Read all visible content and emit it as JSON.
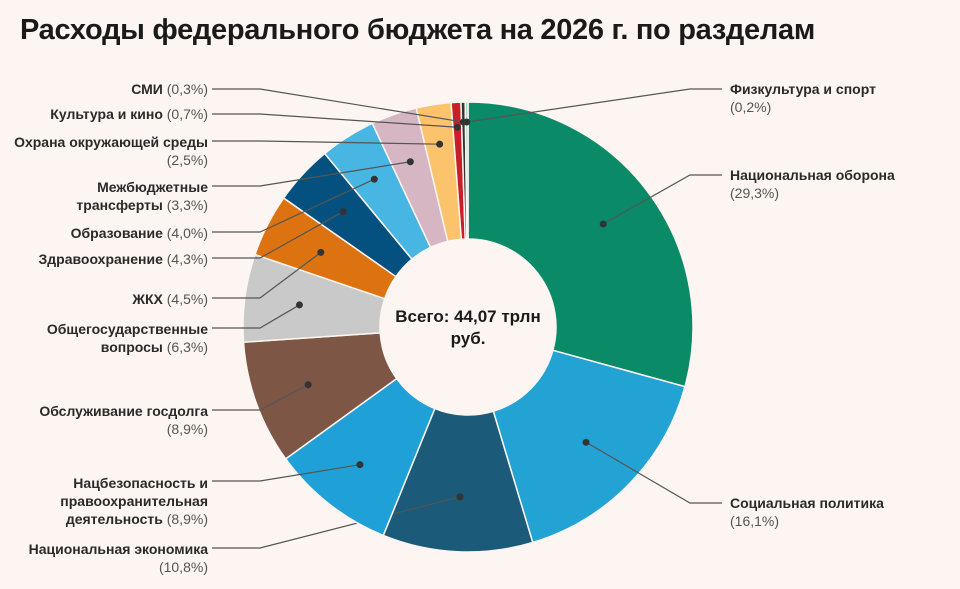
{
  "chart_data": {
    "type": "pie",
    "variant": "donut",
    "title": "Расходы федерального бюджета на 2026 г. по разделам",
    "center_label": "Всего: 44,07 трлн руб.",
    "slices": [
      {
        "name": "Национальная оборона",
        "pct_label": "(29,3%)",
        "value": 29.3,
        "color": "#0a8a67"
      },
      {
        "name": "Социальная политика",
        "pct_label": "(16,1%)",
        "value": 16.1,
        "color": "#22a3d4"
      },
      {
        "name": "Национальная экономика",
        "pct_label": "(10,8%)",
        "value": 10.8,
        "color": "#1b5a78"
      },
      {
        "name": "Нацбезопасность и правоохранительная деятельность",
        "pct_label": "(8,9%)",
        "value": 8.9,
        "color": "#1fa0d6"
      },
      {
        "name": "Обслуживание госдолга",
        "pct_label": "(8,9%)",
        "value": 8.9,
        "color": "#7e5646"
      },
      {
        "name": "Общегосударственные вопросы",
        "pct_label": "(6,3%)",
        "value": 6.3,
        "color": "#c9c9c9"
      },
      {
        "name": "ЖКХ",
        "pct_label": "(4,5%)",
        "value": 4.5,
        "color": "#dc7310"
      },
      {
        "name": "Здравоохранение",
        "pct_label": "(4,3%)",
        "value": 4.3,
        "color": "#04517f"
      },
      {
        "name": "Образование",
        "pct_label": "(4,0%)",
        "value": 4.0,
        "color": "#47b6e2"
      },
      {
        "name": "Межбюджетные трансферты",
        "pct_label": "(3,3%)",
        "value": 3.3,
        "color": "#d6b6c3"
      },
      {
        "name": "Охрана окружающей среды",
        "pct_label": "(2,5%)",
        "value": 2.5,
        "color": "#fbc36c"
      },
      {
        "name": "Культура и кино",
        "pct_label": "(0,7%)",
        "value": 0.7,
        "color": "#c8202a"
      },
      {
        "name": "СМИ",
        "pct_label": "(0,3%)",
        "value": 0.3,
        "color": "#333333"
      },
      {
        "name": "Физкультура и спорт",
        "pct_label": "(0,2%)",
        "value": 0.2,
        "color": "#a9d9b4"
      }
    ]
  }
}
